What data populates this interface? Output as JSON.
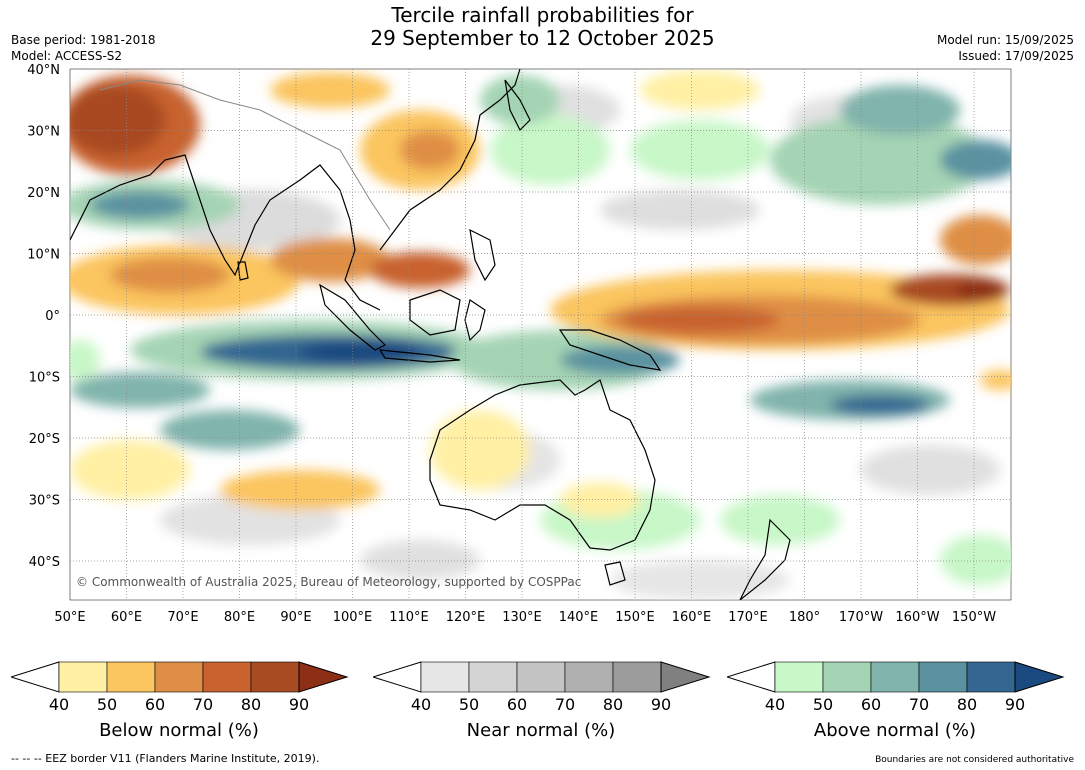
{
  "title_line1": "Tercile rainfall probabilities for",
  "title_line2": "29 September to 12 October 2025",
  "base_period": "Base period: 1981-2018",
  "model": "Model: ACCESS-S2",
  "model_run": "Model run: 15/09/2025",
  "issued": "Issued: 17/09/2025",
  "copyright": "© Commonwealth of Australia 2025, Bureau of Meteorology, supported by COSPPac",
  "lat_labels": [
    "40°N",
    "30°N",
    "20°N",
    "10°N",
    "0°",
    "10°S",
    "20°S",
    "30°S",
    "40°S"
  ],
  "lon_labels": [
    "50°E",
    "60°E",
    "70°E",
    "80°E",
    "90°E",
    "100°E",
    "110°E",
    "120°E",
    "130°E",
    "140°E",
    "150°E",
    "160°E",
    "170°E",
    "180°",
    "170°W",
    "160°W",
    "150°W"
  ],
  "colorbars": [
    {
      "label": "Below normal (%)",
      "ticks": [
        "40",
        "50",
        "60",
        "70",
        "80",
        "90"
      ],
      "colors": [
        "#fff0a4",
        "#fbc55f",
        "#df8f45",
        "#c8622e",
        "#a84a22",
        "#8c2f15"
      ]
    },
    {
      "label": "Near normal (%)",
      "ticks": [
        "40",
        "50",
        "60",
        "70",
        "80",
        "90"
      ],
      "colors": [
        "#e6e6e6",
        "#d4d4d4",
        "#c4c4c4",
        "#b0b0b0",
        "#9c9c9c",
        "#808080"
      ]
    },
    {
      "label": "Above normal (%)",
      "ticks": [
        "40",
        "50",
        "60",
        "70",
        "80",
        "90"
      ],
      "colors": [
        "#c8f7c8",
        "#a4d4b4",
        "#80b4ac",
        "#5a92a0",
        "#336691",
        "#1a4a80"
      ]
    }
  ],
  "footer_left": "--  --  -- EEZ border V11 (Flanders Marine Institute, 2019).",
  "footer_right": "Boundaries are not considered authoritative"
}
